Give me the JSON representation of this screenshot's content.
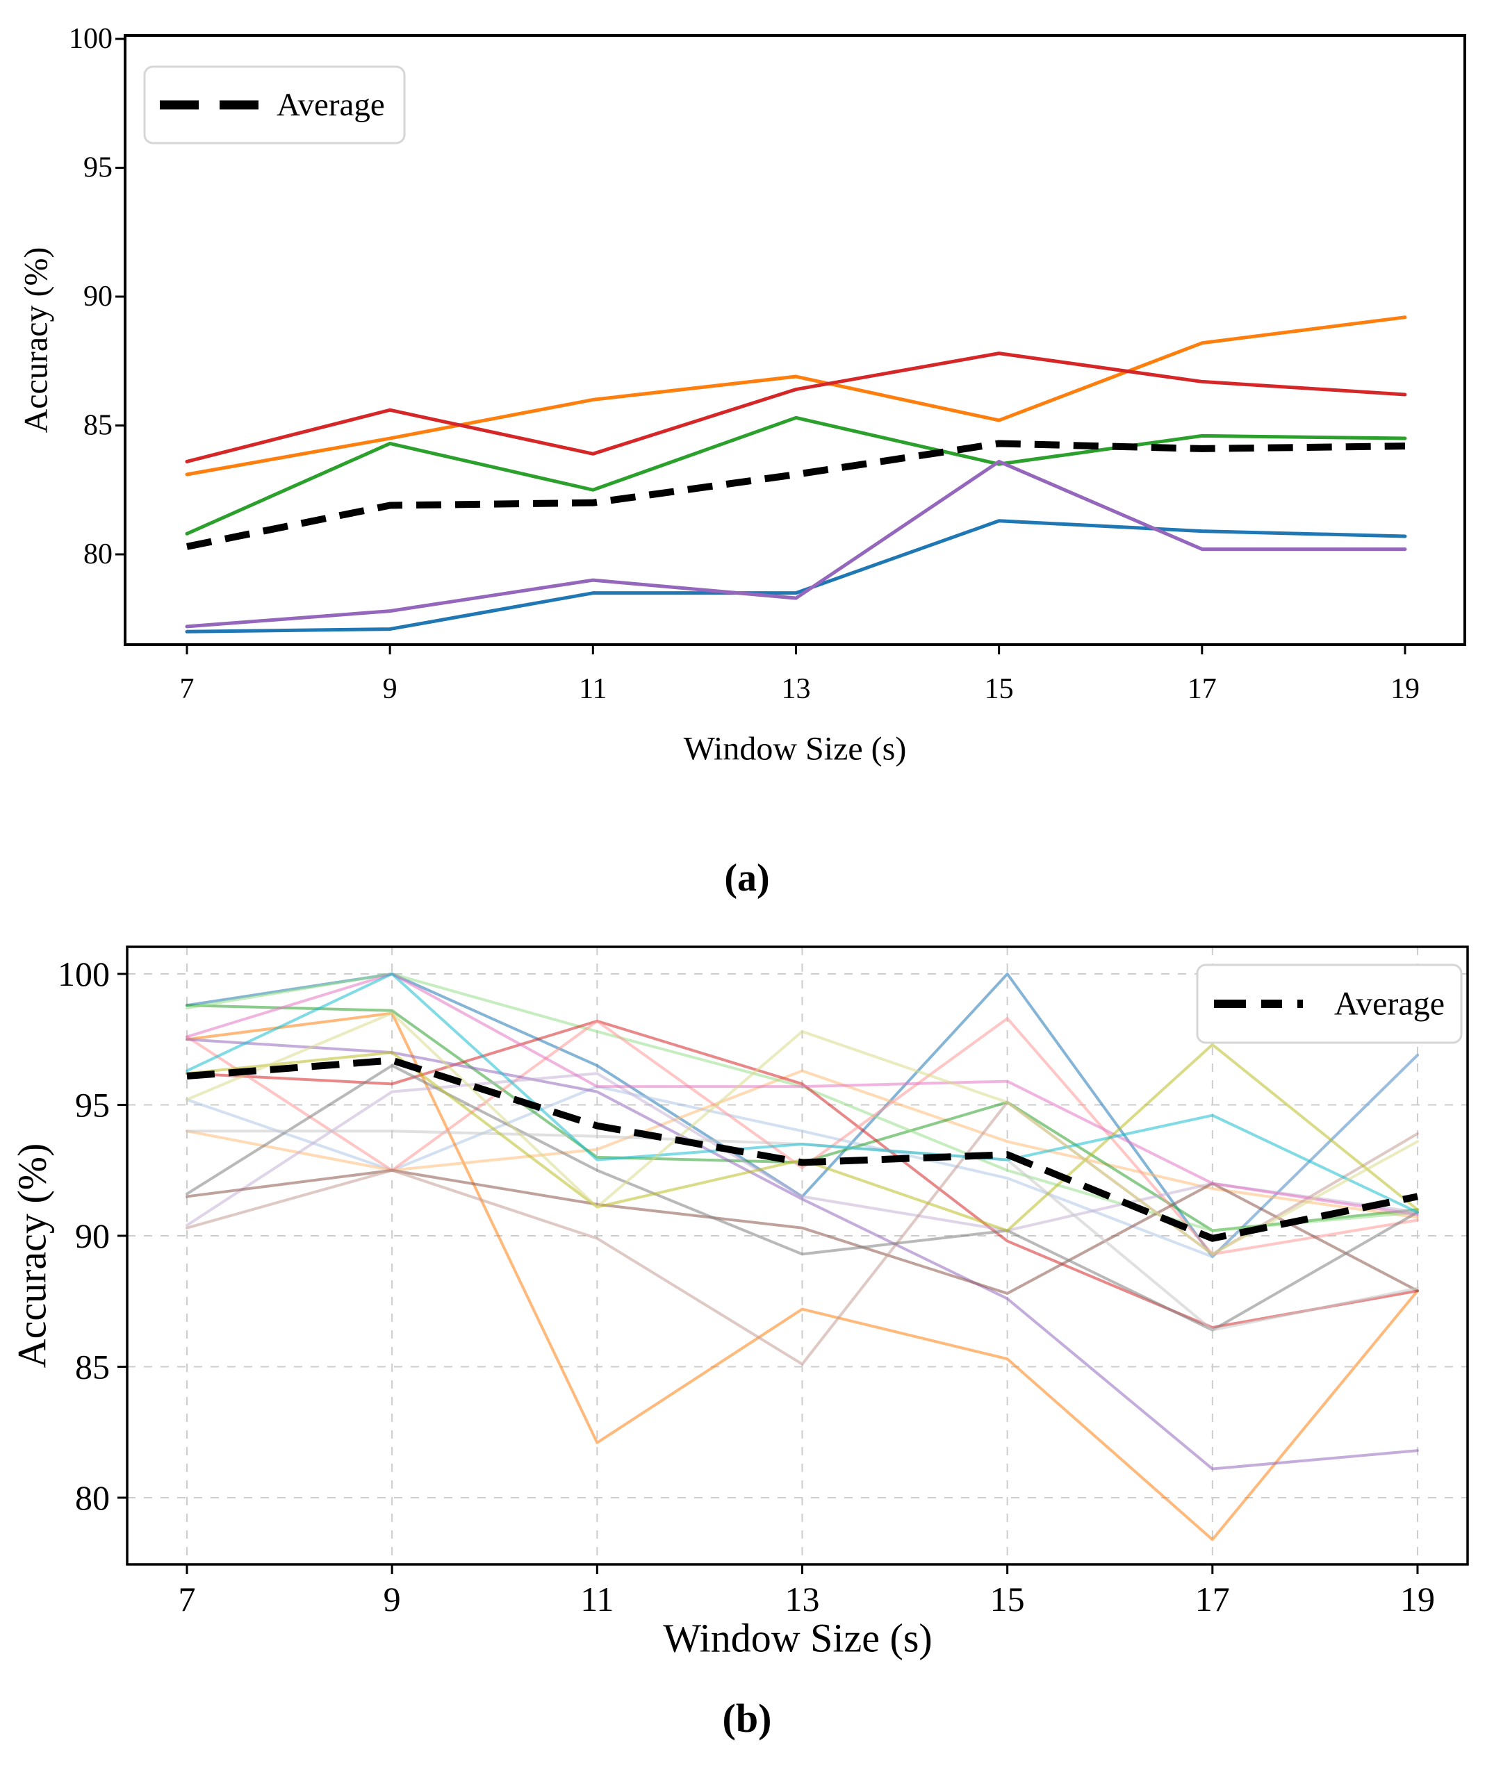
{
  "figure": {
    "captions": [
      "(a)",
      "(b)"
    ]
  },
  "chart_data": [
    {
      "id": "panel-a",
      "type": "line",
      "title": "",
      "xlabel": "Window Size (s)",
      "ylabel": "Accuracy (%)",
      "x": [
        7,
        9,
        11,
        13,
        15,
        17,
        19
      ],
      "xtick_labels": [
        "7",
        "9",
        "11",
        "13",
        "15",
        "17",
        "19"
      ],
      "yticks": [
        80,
        85,
        90,
        95,
        100
      ],
      "ylim": [
        76.5,
        100.1
      ],
      "xlim": [
        6.4,
        19.6
      ],
      "grid": false,
      "legend": {
        "label": "Average",
        "position": "upper-left"
      },
      "series": [
        {
          "name": "line-1",
          "color": "#1f77b4",
          "values": [
            77.0,
            77.1,
            78.5,
            78.5,
            81.3,
            80.9,
            80.7
          ]
        },
        {
          "name": "line-2",
          "color": "#ff7f0e",
          "values": [
            83.1,
            84.5,
            86.0,
            86.9,
            85.2,
            88.2,
            89.2
          ]
        },
        {
          "name": "line-3",
          "color": "#2ca02c",
          "values": [
            80.8,
            84.3,
            82.5,
            85.3,
            83.5,
            84.6,
            84.5
          ]
        },
        {
          "name": "line-4",
          "color": "#d62728",
          "values": [
            83.6,
            85.6,
            83.9,
            86.4,
            87.8,
            86.7,
            86.2
          ]
        },
        {
          "name": "line-5",
          "color": "#9467bd",
          "values": [
            77.2,
            77.8,
            79.0,
            78.3,
            83.6,
            80.2,
            80.2
          ]
        }
      ],
      "average": {
        "name": "Average",
        "color": "#000000",
        "style": "dashed",
        "values": [
          80.3,
          81.9,
          82.0,
          83.1,
          84.3,
          84.1,
          84.2
        ]
      }
    },
    {
      "id": "panel-b",
      "type": "line",
      "title": "",
      "xlabel": "Window Size (s)",
      "ylabel": "Accuracy (%)",
      "x": [
        7,
        9,
        11,
        13,
        15,
        17,
        19
      ],
      "xtick_labels": [
        "7",
        "9",
        "11",
        "13",
        "15",
        "17",
        "19"
      ],
      "yticks": [
        80,
        85,
        90,
        95,
        100
      ],
      "ylim": [
        77.3,
        101.1
      ],
      "xlim": [
        6.4,
        19.6
      ],
      "grid": true,
      "legend": {
        "label": "Average",
        "position": "upper-right"
      },
      "series": [
        {
          "name": "line-1",
          "color": "#1f77b4",
          "values": [
            98.8,
            100.0,
            96.5,
            91.5,
            100.0,
            89.2,
            96.9
          ]
        },
        {
          "name": "line-2",
          "color": "#aec7e8",
          "values": [
            95.2,
            92.5,
            95.7,
            94.0,
            92.2,
            89.2,
            96.9
          ]
        },
        {
          "name": "line-3",
          "color": "#ff7f0e",
          "values": [
            97.5,
            98.5,
            82.1,
            87.2,
            85.3,
            78.4,
            87.9
          ]
        },
        {
          "name": "line-4",
          "color": "#ffbb78",
          "values": [
            94.0,
            92.5,
            93.3,
            96.3,
            93.6,
            91.8,
            90.7
          ]
        },
        {
          "name": "line-5",
          "color": "#2ca02c",
          "values": [
            98.8,
            98.6,
            93.0,
            92.8,
            95.1,
            90.2,
            91.0
          ]
        },
        {
          "name": "line-6",
          "color": "#98df8a",
          "values": [
            98.7,
            100.0,
            97.8,
            95.7,
            92.5,
            90.2,
            90.9
          ]
        },
        {
          "name": "line-7",
          "color": "#d62728",
          "values": [
            96.2,
            95.8,
            98.2,
            95.8,
            89.8,
            86.5,
            87.9
          ]
        },
        {
          "name": "line-8",
          "color": "#ff9896",
          "values": [
            97.6,
            92.5,
            98.2,
            92.6,
            98.3,
            89.3,
            90.6
          ]
        },
        {
          "name": "line-9",
          "color": "#9467bd",
          "values": [
            97.5,
            97.0,
            95.5,
            91.4,
            87.6,
            81.1,
            81.8
          ]
        },
        {
          "name": "line-10",
          "color": "#c5b0d5",
          "values": [
            90.4,
            95.5,
            96.2,
            91.5,
            90.2,
            92.0,
            90.9
          ]
        },
        {
          "name": "line-11",
          "color": "#8c564b",
          "values": [
            91.5,
            92.5,
            91.2,
            90.3,
            87.8,
            92.0,
            87.9
          ]
        },
        {
          "name": "line-12",
          "color": "#c49c94",
          "values": [
            90.3,
            92.5,
            89.9,
            85.1,
            95.1,
            89.3,
            93.9
          ]
        },
        {
          "name": "line-13",
          "color": "#e377c2",
          "values": [
            97.6,
            100.0,
            95.7,
            95.7,
            95.9,
            92.0,
            90.8
          ]
        },
        {
          "name": "line-14",
          "color": "#7f7f7f",
          "values": [
            91.6,
            96.5,
            92.5,
            89.3,
            90.2,
            86.4,
            90.9
          ]
        },
        {
          "name": "line-15",
          "color": "#c7c7c7",
          "values": [
            94.0,
            94.0,
            93.8,
            93.5,
            92.9,
            86.4,
            88.0
          ]
        },
        {
          "name": "line-16",
          "color": "#bcbd22",
          "values": [
            96.2,
            97.0,
            91.1,
            92.9,
            90.2,
            97.3,
            91.0
          ]
        },
        {
          "name": "line-17",
          "color": "#17becf",
          "values": [
            96.3,
            100.0,
            92.9,
            93.5,
            92.9,
            94.6,
            90.9
          ]
        },
        {
          "name": "line-18",
          "color": "#dbdb8d",
          "values": [
            95.2,
            98.5,
            91.1,
            97.8,
            95.1,
            89.3,
            93.6
          ]
        }
      ],
      "average": {
        "name": "Average",
        "color": "#000000",
        "style": "dashed",
        "values": [
          96.1,
          96.7,
          94.2,
          92.8,
          93.1,
          89.9,
          91.5
        ]
      }
    }
  ]
}
